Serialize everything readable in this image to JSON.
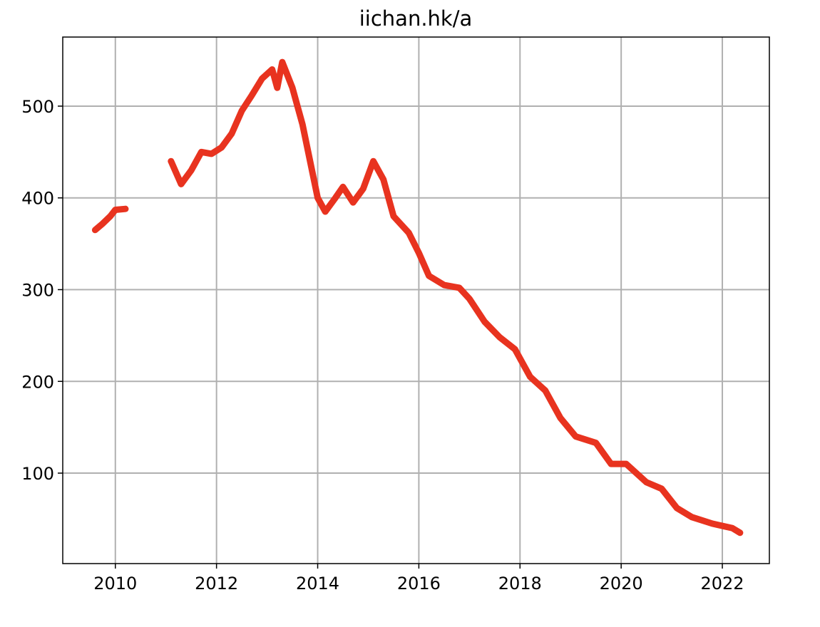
{
  "chart_data": {
    "type": "line",
    "title": "iichan.hk/a",
    "x": [
      2009.6,
      2009.75,
      2009.9,
      2010.0,
      2010.2,
      2010.6,
      2011.1,
      2011.3,
      2011.5,
      2011.7,
      2011.9,
      2012.1,
      2012.3,
      2012.5,
      2012.7,
      2012.9,
      2013.1,
      2013.2,
      2013.3,
      2013.5,
      2013.7,
      2013.85,
      2014.0,
      2014.15,
      2014.35,
      2014.5,
      2014.7,
      2014.9,
      2015.1,
      2015.3,
      2015.5,
      2015.8,
      2016.0,
      2016.2,
      2016.5,
      2016.8,
      2017.0,
      2017.3,
      2017.6,
      2017.9,
      2018.2,
      2018.5,
      2018.8,
      2019.1,
      2019.5,
      2019.8,
      2020.1,
      2020.5,
      2020.8,
      2021.1,
      2021.4,
      2021.8,
      2022.2,
      2022.35
    ],
    "series": [
      {
        "color": "#e8331f",
        "values": [
          365,
          372,
          380,
          387,
          388,
          null,
          440,
          415,
          430,
          450,
          448,
          455,
          470,
          495,
          512,
          530,
          540,
          520,
          548,
          520,
          480,
          440,
          400,
          385,
          400,
          412,
          395,
          410,
          440,
          420,
          380,
          362,
          340,
          315,
          305,
          302,
          290,
          265,
          248,
          235,
          205,
          190,
          160,
          140,
          133,
          110,
          110,
          90,
          83,
          62,
          52,
          45,
          40,
          35
        ]
      }
    ],
    "xlim": [
      2008.96,
      2022.93
    ],
    "xticks": [
      2010,
      2012,
      2014,
      2016,
      2018,
      2020,
      2022
    ],
    "ylim": [
      1.4,
      575.3
    ],
    "yticks": [
      100,
      200,
      300,
      400,
      500
    ],
    "grid": true
  }
}
